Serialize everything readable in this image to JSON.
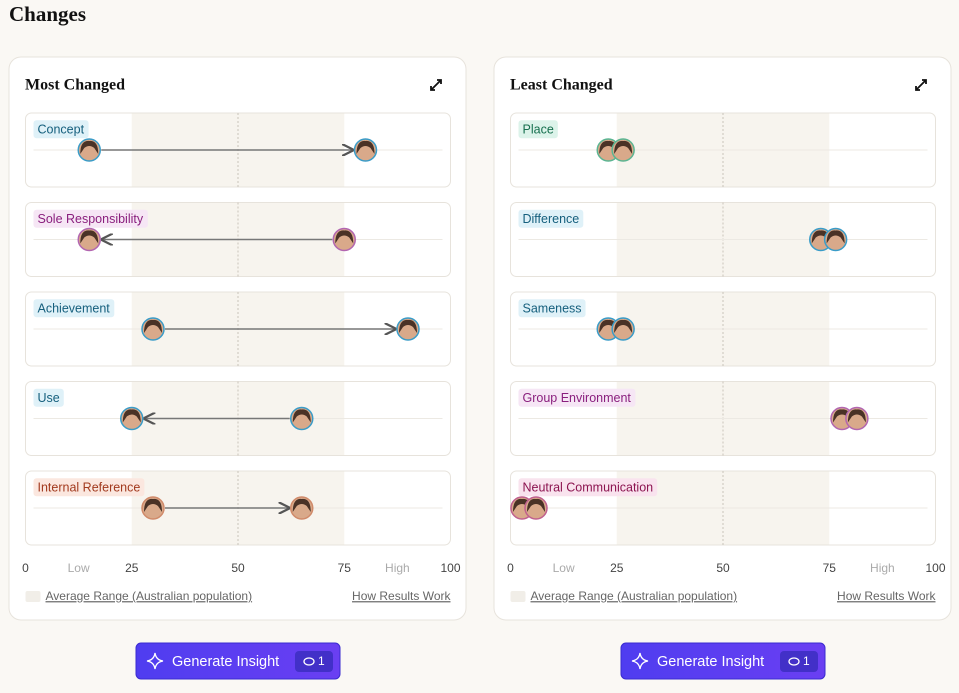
{
  "title": "Changes",
  "panels": [
    {
      "title": "Most Changed",
      "xlim": [
        0,
        100
      ],
      "axis_ticks": [
        0,
        {
          "value": 12.5,
          "label": "Low"
        },
        25,
        50,
        75,
        {
          "value": 87.5,
          "label": "High"
        },
        100
      ],
      "average_range": [
        25,
        75
      ],
      "rows": [
        {
          "label": "Concept",
          "color": "blue",
          "from": 15,
          "to": 80
        },
        {
          "label": "Sole Responsibility",
          "color": "purple",
          "from": 75,
          "to": 15
        },
        {
          "label": "Achievement",
          "color": "blue",
          "from": 30,
          "to": 90
        },
        {
          "label": "Use",
          "color": "blue",
          "from": 65,
          "to": 25
        },
        {
          "label": "Internal Reference",
          "color": "orange",
          "from": 30,
          "to": 65
        }
      ],
      "legend": "Average Range (Australian population)",
      "link": "How Results Work",
      "button": "Generate Insight",
      "badge": 1
    },
    {
      "title": "Least Changed",
      "xlim": [
        0,
        100
      ],
      "axis_ticks": [
        0,
        {
          "value": 12.5,
          "label": "Low"
        },
        25,
        50,
        75,
        {
          "value": 87.5,
          "label": "High"
        },
        100
      ],
      "average_range": [
        25,
        75
      ],
      "rows": [
        {
          "label": "Place",
          "color": "green",
          "from": 23,
          "to": 26.5
        },
        {
          "label": "Difference",
          "color": "blue",
          "from": 73,
          "to": 76.5
        },
        {
          "label": "Sameness",
          "color": "blue",
          "from": 23,
          "to": 26.5
        },
        {
          "label": "Group Environment",
          "color": "purple",
          "from": 78,
          "to": 81.5
        },
        {
          "label": "Neutral Communication",
          "color": "pink",
          "from": 2.7,
          "to": 6
        }
      ],
      "legend": "Average Range (Australian population)",
      "link": "How Results Work",
      "button": "Generate Insight",
      "badge": 1
    }
  ]
}
